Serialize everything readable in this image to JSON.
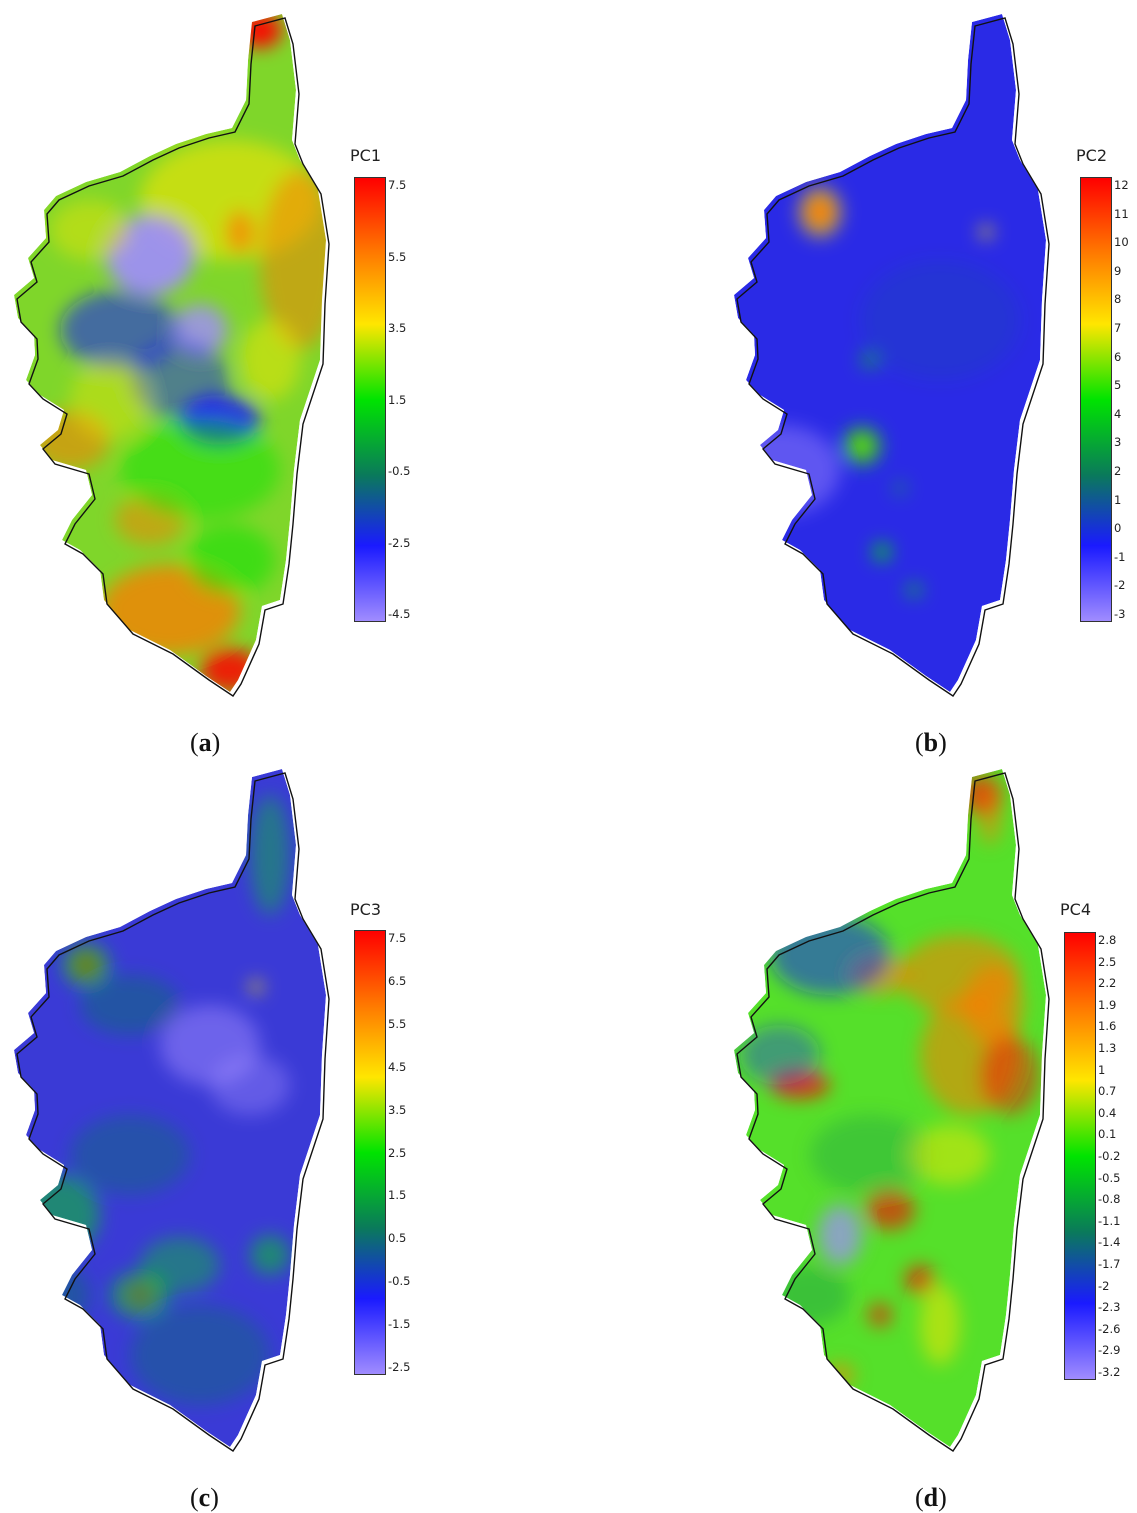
{
  "figure": {
    "panels": [
      {
        "id": "a",
        "caption_letter": "a",
        "legend_title": "PC1",
        "ticks": [
          "7.5",
          "5.5",
          "3.5",
          "1.5",
          "-0.5",
          "-2.5",
          "-4.5"
        ],
        "range": [
          -4.5,
          7.5
        ],
        "base_color": "#7fd62a"
      },
      {
        "id": "b",
        "caption_letter": "b",
        "legend_title": "PC2",
        "ticks": [
          "12",
          "11",
          "10",
          "9",
          "8",
          "7",
          "6",
          "5",
          "4",
          "3",
          "2",
          "1",
          "0",
          "-1",
          "-2",
          "-3"
        ],
        "range": [
          -3,
          12
        ],
        "base_color": "#2a2ae6"
      },
      {
        "id": "c",
        "caption_letter": "c",
        "legend_title": "PC3",
        "ticks": [
          "7.5",
          "6.5",
          "5.5",
          "4.5",
          "3.5",
          "2.5",
          "1.5",
          "0.5",
          "-0.5",
          "-1.5",
          "-2.5"
        ],
        "range": [
          -2.5,
          7.5
        ],
        "base_color": "#3a3ad6"
      },
      {
        "id": "d",
        "caption_letter": "d",
        "legend_title": "PC4",
        "ticks": [
          "2.8",
          "2.5",
          "2.2",
          "1.9",
          "1.6",
          "1.3",
          "1",
          "0.7",
          "0.4",
          "0.1",
          "-0.2",
          "-0.5",
          "-0.8",
          "-1.1",
          "-1.4",
          "-1.7",
          "-2",
          "-2.3",
          "-2.6",
          "-2.9",
          "-3.2"
        ],
        "range": [
          -3.2,
          2.8
        ],
        "base_color": "#55e02a"
      }
    ],
    "colormap": [
      "#ff0000",
      "#ff7a00",
      "#ffe600",
      "#00e400",
      "#0a7a5a",
      "#1a1aff",
      "#a08cff"
    ]
  }
}
